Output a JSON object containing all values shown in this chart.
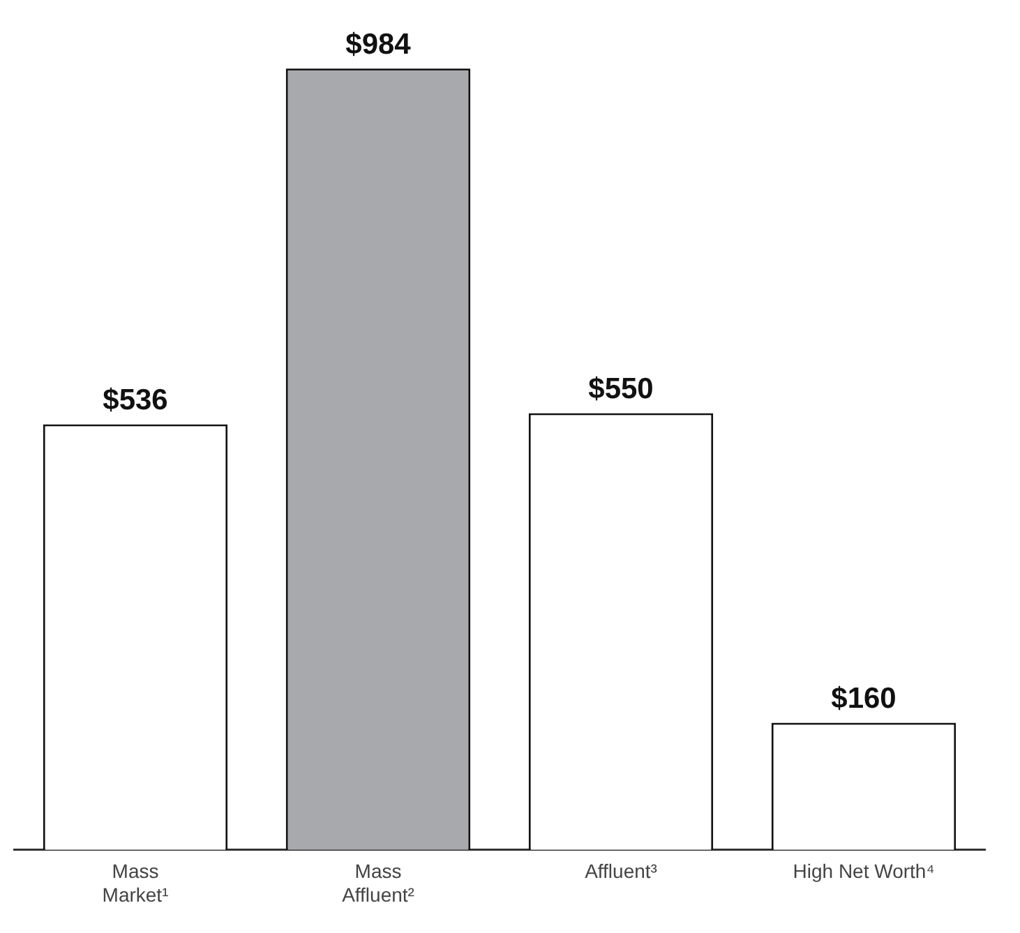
{
  "chart_data": {
    "type": "bar",
    "categories": [
      "Mass Market¹",
      "Mass Affluent²",
      "Affluent³",
      "High Net Worth⁴"
    ],
    "values": [
      536,
      984,
      550,
      160
    ],
    "colors": [
      "#ffffff",
      "#a7a9ac",
      "#ffffff",
      "#ffffff"
    ],
    "value_labels": [
      "$536",
      "$984",
      "$550",
      "$160"
    ],
    "grid": false,
    "legend": false,
    "tick_labels": "x"
  }
}
